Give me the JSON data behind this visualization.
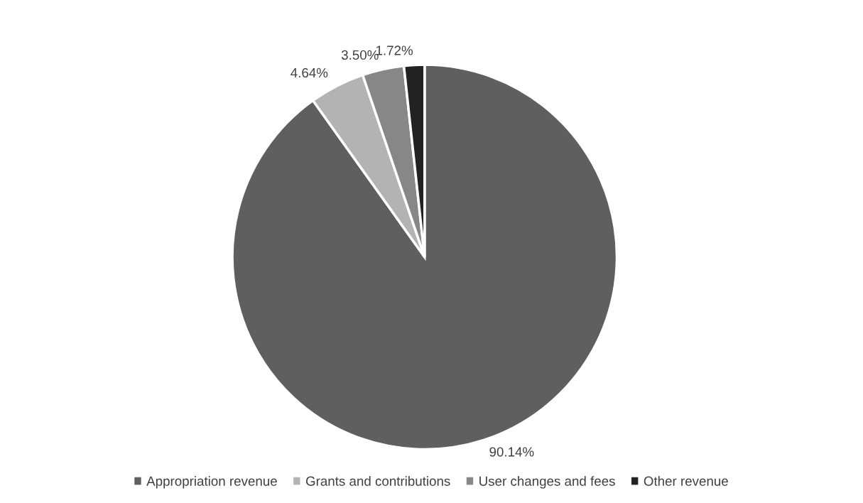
{
  "chart_data": {
    "type": "pie",
    "categories": [
      "Appropriation revenue",
      "Grants and contributions",
      "User changes and fees",
      "Other revenue"
    ],
    "values": [
      90.14,
      4.64,
      3.5,
      1.72
    ],
    "value_labels": [
      "90.14%",
      "4.64%",
      "3.50%",
      "1.72%"
    ],
    "colors": [
      "#5f5f5f",
      "#b3b3b3",
      "#878787",
      "#222222"
    ],
    "legend": "bottom"
  }
}
